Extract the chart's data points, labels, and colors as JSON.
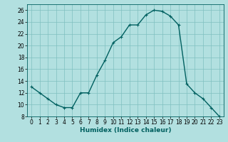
{
  "xlabel": "Humidex (Indice chaleur)",
  "x": [
    0,
    1,
    2,
    3,
    4,
    5,
    6,
    7,
    8,
    9,
    10,
    11,
    12,
    13,
    14,
    15,
    16,
    17,
    18,
    19,
    20,
    21,
    22,
    23
  ],
  "y": [
    13,
    12,
    11,
    10,
    9.5,
    9.5,
    12,
    12,
    15,
    17.5,
    20.5,
    21.5,
    23.5,
    23.5,
    25.2,
    26,
    25.8,
    25,
    23.5,
    13.5,
    12,
    11,
    9.5,
    8
  ],
  "line_color": "#006060",
  "bg_color": "#b2e0e0",
  "grid_color": "#7fbfbf",
  "ylim": [
    8,
    27
  ],
  "yticks": [
    8,
    10,
    12,
    14,
    16,
    18,
    20,
    22,
    24,
    26
  ],
  "xticks": [
    0,
    1,
    2,
    3,
    4,
    5,
    6,
    7,
    8,
    9,
    10,
    11,
    12,
    13,
    14,
    15,
    16,
    17,
    18,
    19,
    20,
    21,
    22,
    23
  ],
  "marker": "+",
  "linewidth": 1.0,
  "fontsize_label": 6.5,
  "fontsize_tick": 5.5
}
